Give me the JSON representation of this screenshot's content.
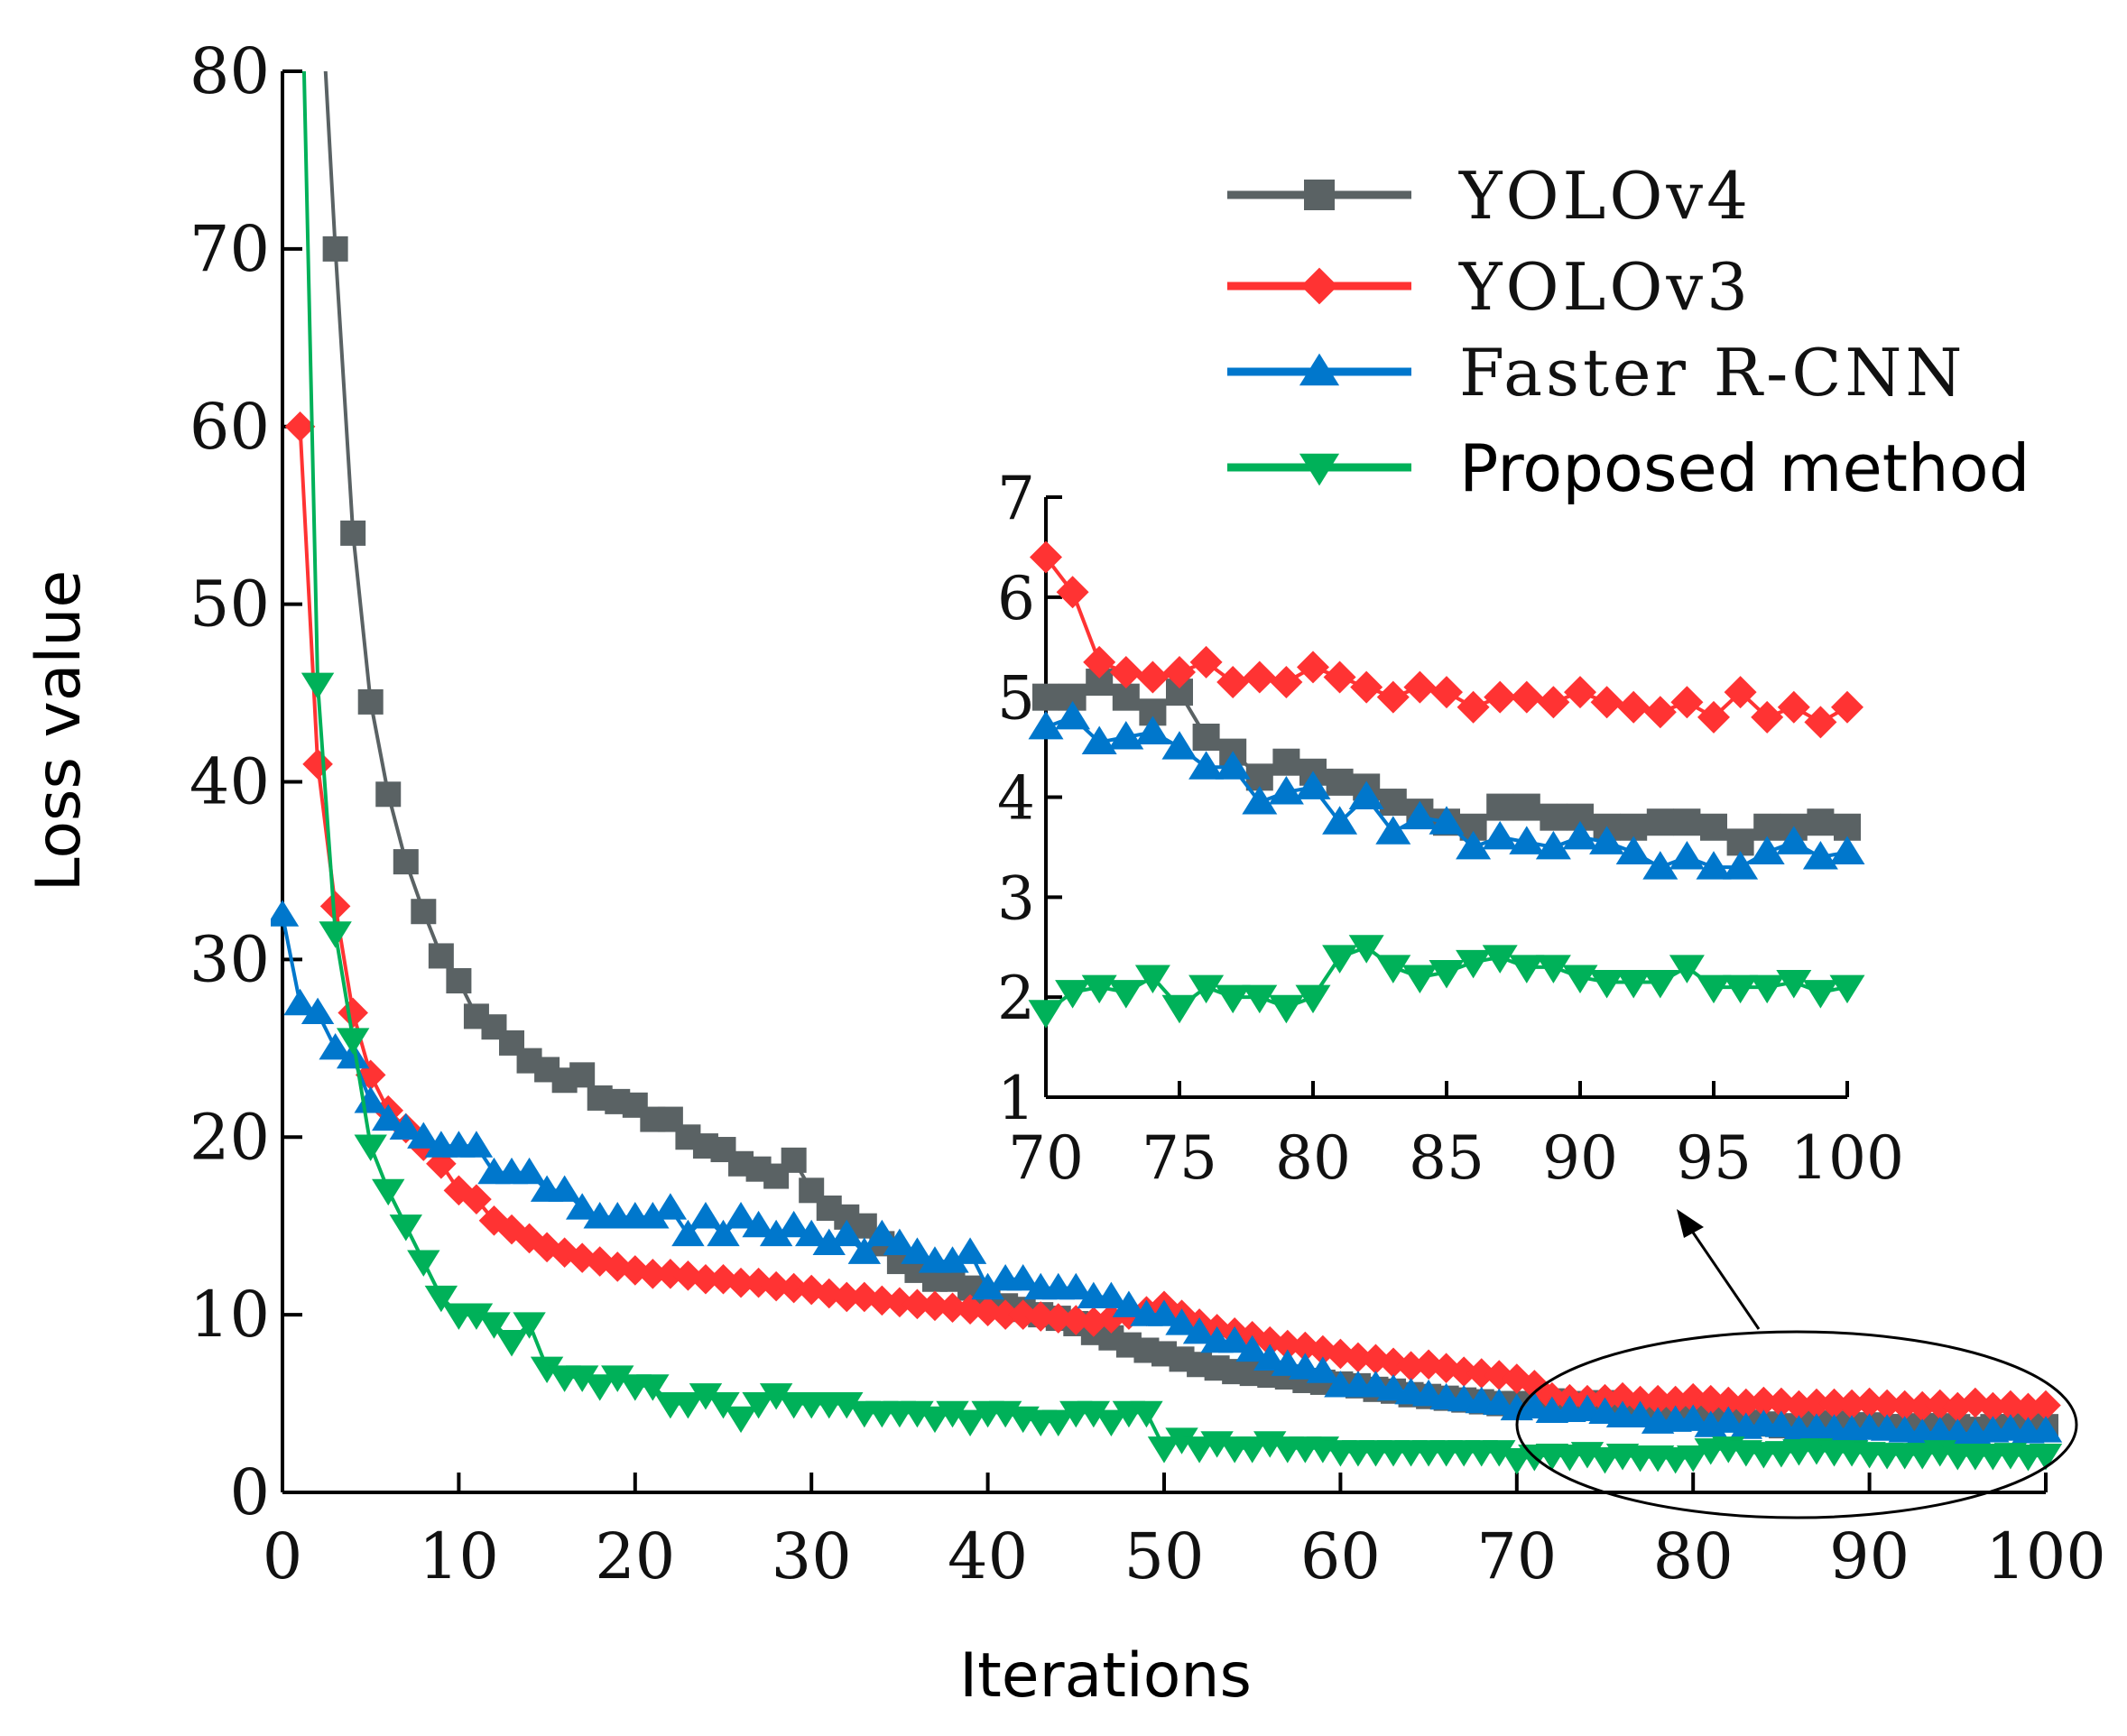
{
  "chart_data": {
    "type": "line",
    "xlabel": "Iterations",
    "ylabel": "Loss value",
    "xlim": [
      0,
      100
    ],
    "ylim": [
      0,
      80
    ],
    "xticks": [
      "0",
      "10",
      "20",
      "30",
      "40",
      "50",
      "60",
      "70",
      "80",
      "90",
      "100"
    ],
    "yticks": [
      "0",
      "10",
      "20",
      "30",
      "40",
      "50",
      "60",
      "70",
      "80"
    ],
    "legend_position": "top-right",
    "colors": {
      "YOLOv4": "#5a6264",
      "YOLOv3": "#ff3333",
      "Faster R-CNN": "#0077cc",
      "Proposed method": "#00b159"
    },
    "series": [
      {
        "name": "YOLOv4",
        "marker": "square",
        "x_start": 2,
        "values": [
          88,
          70,
          54,
          44.5,
          39.3,
          35.5,
          32.7,
          30.2,
          28.8,
          26.8,
          26.2,
          25.3,
          24.3,
          23.8,
          23.2,
          23.5,
          22.2,
          22,
          21.8,
          21,
          21,
          20,
          19.5,
          19.3,
          18.5,
          18.2,
          17.8,
          18.7,
          17,
          16,
          15.5,
          15,
          14,
          13,
          12.5,
          12,
          12,
          11.5,
          11,
          10.5,
          10.3,
          10,
          9.8,
          9.5,
          9,
          8.7,
          8.3,
          8,
          7.8,
          7.5,
          7.2,
          7,
          6.8,
          6.7,
          6.6,
          6.5,
          6.3,
          6.2,
          6.1,
          6,
          5.8,
          5.7,
          5.5,
          5.4,
          5.3,
          5.2,
          5.1,
          5,
          5,
          5,
          5.15,
          5,
          4.85,
          5.05,
          4.6,
          4.45,
          4.2,
          4.35,
          4.25,
          4.15,
          4.1,
          3.95,
          3.85,
          3.75,
          3.7,
          3.9,
          3.9,
          3.8,
          3.8,
          3.7,
          3.7,
          3.75,
          3.75,
          3.7,
          3.55,
          3.7,
          3.7,
          3.75,
          3.7
        ]
      },
      {
        "name": "YOLOv3",
        "marker": "diamond",
        "x_start": 1,
        "values": [
          60,
          41,
          33,
          27,
          23.5,
          21.5,
          20.5,
          19.5,
          18.5,
          17,
          16.5,
          15.3,
          14.8,
          14.3,
          13.8,
          13.5,
          13.2,
          13,
          12.7,
          12.5,
          12.3,
          12.3,
          12.2,
          12,
          12,
          11.8,
          11.8,
          11.6,
          11.5,
          11.4,
          11.2,
          11,
          11,
          10.8,
          10.7,
          10.6,
          10.5,
          10.4,
          10.3,
          10.2,
          10,
          10,
          9.9,
          9.8,
          9.7,
          9.6,
          9.8,
          10,
          10.2,
          10.5,
          10,
          9.5,
          9.2,
          9,
          8.8,
          8.5,
          8.3,
          8.2,
          8,
          7.8,
          7.6,
          7.5,
          7.3,
          7.1,
          7.2,
          7,
          6.8,
          6.7,
          6.6,
          6.4,
          6.05,
          5.35,
          5.25,
          5.2,
          5.25,
          5.35,
          5.15,
          5.2,
          5.15,
          5.3,
          5.2,
          5.1,
          5,
          5.1,
          5.05,
          4.9,
          5,
          5,
          4.95,
          5.05,
          4.95,
          4.9,
          4.85,
          4.95,
          4.8,
          5.05,
          4.8,
          4.9,
          4.75,
          4.9
        ]
      },
      {
        "name": "Faster R-CNN",
        "marker": "triangle-up",
        "x_start": 0,
        "values": [
          32.5,
          27.5,
          27,
          25,
          24.5,
          22,
          21,
          20.5,
          20,
          19.5,
          19.5,
          19.5,
          18,
          18,
          18,
          17,
          17,
          16,
          15.5,
          15.5,
          15.5,
          15.5,
          16,
          14.5,
          15.5,
          14.5,
          15.5,
          15,
          14.5,
          15,
          14.5,
          14,
          14.5,
          13.5,
          14.5,
          14,
          13.5,
          13,
          13,
          13.5,
          11.5,
          12,
          12,
          11.5,
          11.5,
          11.5,
          11,
          11,
          10.5,
          10,
          10,
          9.5,
          9,
          8.5,
          8.5,
          8,
          7.5,
          7.2,
          7,
          6.8,
          6,
          6,
          6,
          5.8,
          5.6,
          5.5,
          5.3,
          5.2,
          5.1,
          5,
          4.7,
          4.8,
          4.55,
          4.6,
          4.65,
          4.5,
          4.3,
          4.3,
          3.95,
          4.05,
          4.1,
          3.75,
          4,
          3.65,
          3.8,
          3.75,
          3.5,
          3.6,
          3.55,
          3.5,
          3.6,
          3.55,
          3.45,
          3.3,
          3.4,
          3.3,
          3.3,
          3.45,
          3.55,
          3.4,
          3.45
        ]
      },
      {
        "name": "Proposed method",
        "marker": "triangle-down",
        "x_start": 1,
        "values": [
          90,
          45.5,
          31.5,
          25.5,
          19.5,
          17,
          15,
          13,
          11,
          10,
          10,
          9.5,
          8.5,
          9.5,
          7,
          6.5,
          6.5,
          6,
          6.5,
          6,
          6,
          5,
          5,
          5.5,
          5,
          4.2,
          5,
          5.5,
          5,
          5,
          5,
          5,
          4.5,
          4.5,
          4.5,
          4.5,
          4.2,
          4.5,
          4,
          4.5,
          4.5,
          4.2,
          4,
          4,
          4.5,
          4.5,
          4,
          4.5,
          4.5,
          2.5,
          3,
          2.5,
          2.8,
          2.5,
          2.5,
          2.8,
          2.5,
          2.5,
          2.5,
          2.3,
          2.3,
          2.3,
          2.3,
          2.3,
          2.3,
          2.3,
          2.3,
          2.3,
          2.3,
          1.85,
          2.05,
          2.1,
          2.05,
          2.2,
          1.9,
          2.1,
          2,
          2,
          1.9,
          2,
          2.4,
          2.5,
          2.3,
          2.2,
          2.25,
          2.35,
          2.4,
          2.3,
          2.3,
          2.2,
          2.15,
          2.15,
          2.15,
          2.3,
          2.1,
          2.1,
          2.1,
          2.15,
          2.05,
          2.1
        ]
      }
    ],
    "inset": {
      "xlim": [
        70,
        100
      ],
      "ylim": [
        1,
        7
      ],
      "xticks": [
        "70",
        "75",
        "80",
        "85",
        "90",
        "95",
        "100"
      ],
      "yticks": [
        "1",
        "2",
        "3",
        "4",
        "5",
        "6",
        "7"
      ]
    }
  }
}
